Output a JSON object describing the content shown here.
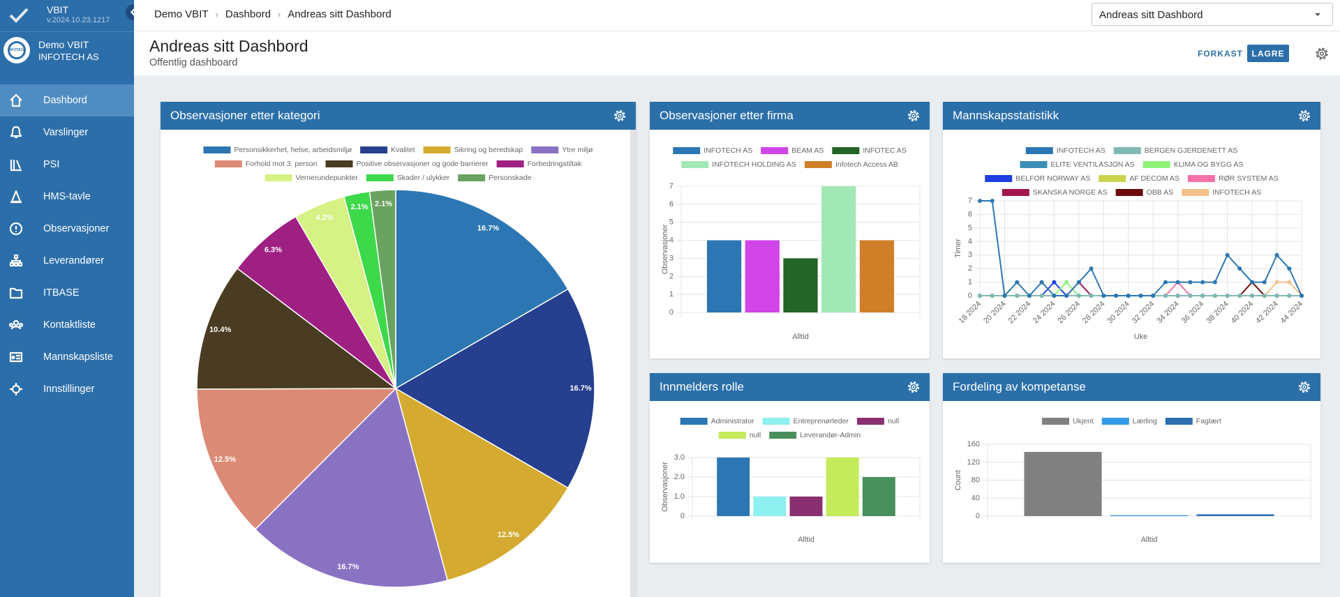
{
  "sidebar": {
    "app_name": "VBIT",
    "version": "v.2024.10.23.1217",
    "account": "Demo VBIT",
    "company": "INFOTECH AS",
    "logo_text": "INFOTECH",
    "menu": [
      "Dashbord",
      "Varslinger",
      "PSI",
      "HMS-tavle",
      "Observasjoner",
      "Leverandører",
      "ITBASE",
      "Kontaktliste",
      "Mannskapsliste",
      "Innstillinger"
    ]
  },
  "topbar": {
    "breadcrumb": [
      "Demo VBIT",
      "Dashbord",
      "Andreas sitt Dashbord"
    ],
    "dashboard_select": "Andreas sitt Dashbord"
  },
  "header": {
    "title": "Andreas sitt Dashbord",
    "subtitle": "Offentlig dashboard",
    "buttons": {
      "discard": "FORKAST",
      "save": "LAGRE"
    }
  },
  "chart_data": [
    {
      "type": "pie",
      "title": "Observasjoner etter kategori",
      "categories": [
        "Personsikkerhet, helse, arbeidsmiljø",
        "Kvalitet",
        "Sikring og beredskap",
        "Ytre miljø",
        "Forhold mot 3. person",
        "Positive observasjoner og gode barrierer",
        "Forbedringstiltak",
        "Vernerundepunkter",
        "Skader / ulykker",
        "Personskade"
      ],
      "values": [
        16.7,
        16.7,
        12.5,
        16.7,
        12.5,
        10.4,
        6.3,
        4.2,
        2.1,
        2.1
      ],
      "value_labels": [
        "16.7%",
        "16.7%",
        "12.5%",
        "16.7%",
        "12.5%",
        "10.4%",
        "6.3%",
        "4.2%",
        "2.1%",
        "2.1%"
      ],
      "colors": [
        "#2c77b3",
        "#263f8e",
        "#d4aa30",
        "#8a72c3",
        "#db8b75",
        "#4a3c22",
        "#9f2083",
        "#d6f184",
        "#3ed84b",
        "#6aa25f"
      ]
    },
    {
      "type": "bar",
      "title": "Observasjoner etter firma",
      "categories": [
        "Alltid"
      ],
      "series": [
        {
          "name": "INFOTECH AS",
          "color": "#2c77b3",
          "values": [
            4
          ]
        },
        {
          "name": "BEAM AS",
          "color": "#d144e8",
          "values": [
            4
          ]
        },
        {
          "name": "INFOTEC AS",
          "color": "#236427",
          "values": [
            3
          ]
        },
        {
          "name": "INFOTECH HOLDING AS",
          "color": "#a2e8b6",
          "values": [
            7
          ]
        },
        {
          "name": "Infotech Access AB",
          "color": "#d07f29",
          "values": [
            4
          ]
        }
      ],
      "ylabel": "Observasjoner",
      "ylim": [
        0,
        7
      ],
      "yticks": [
        0,
        1,
        2,
        3,
        4,
        5,
        6,
        7
      ],
      "grid": true
    },
    {
      "type": "line",
      "title": "Mannskapsstatistikk",
      "categories": [
        "18 2024",
        null,
        "20 2024",
        null,
        "22 2024",
        null,
        "24 2024",
        null,
        "26 2024",
        null,
        "28 2024",
        null,
        "30 2024",
        null,
        "32 2024",
        null,
        "34 2024",
        null,
        "36 2024",
        null,
        "38 2024",
        null,
        "40 2024",
        null,
        "42 2024",
        null,
        "44 2024"
      ],
      "series": [
        {
          "name": "INFOTECH AS",
          "color": "#2c77b3",
          "values": [
            7,
            7,
            0,
            1,
            0,
            1,
            0,
            0,
            1,
            2,
            0,
            0,
            0,
            0,
            0,
            1,
            1,
            1,
            1,
            1,
            3,
            2,
            1,
            1,
            3,
            2,
            0
          ]
        },
        {
          "name": "BERGEN GJERDENETT AS",
          "color": "#80b9b3",
          "values": [
            0,
            0,
            0,
            0,
            0,
            0,
            0,
            0,
            0,
            0,
            0,
            0,
            0,
            0,
            0,
            0,
            0,
            0,
            0,
            0,
            0,
            0,
            0,
            0,
            0,
            0,
            0
          ]
        },
        {
          "name": "ELITE VENTILASJON AS",
          "color": "#3b8fb7",
          "values": [
            0,
            0,
            0,
            0,
            0,
            0,
            0,
            0,
            0,
            0,
            0,
            0,
            0,
            0,
            0,
            0,
            0,
            0,
            0,
            0,
            0,
            0,
            0,
            0,
            0,
            0,
            0
          ]
        },
        {
          "name": "KLIMA OG BYGG AS",
          "color": "#8ff27b",
          "values": [
            0,
            0,
            0,
            0,
            0,
            0,
            0,
            1,
            0,
            0,
            0,
            0,
            0,
            0,
            0,
            0,
            0,
            0,
            0,
            0,
            0,
            0,
            0,
            0,
            0,
            0,
            0
          ]
        },
        {
          "name": "BELFOR NORWAY AS",
          "color": "#1f3fe0",
          "values": [
            0,
            0,
            0,
            0,
            0,
            0,
            1,
            0,
            0,
            0,
            0,
            0,
            0,
            0,
            0,
            0,
            0,
            0,
            0,
            0,
            0,
            0,
            0,
            0,
            0,
            0,
            0
          ]
        },
        {
          "name": "AF DECOM AS",
          "color": "#cad44c",
          "values": [
            0,
            0,
            0,
            0,
            0,
            0,
            0,
            0,
            0,
            0,
            0,
            0,
            0,
            0,
            0,
            0,
            0,
            0,
            0,
            0,
            0,
            0,
            0,
            0,
            0,
            0,
            0
          ]
        },
        {
          "name": "RØR SYSTEM AS",
          "color": "#f570a9",
          "values": [
            0,
            0,
            0,
            0,
            0,
            0,
            0,
            0,
            0,
            0,
            0,
            0,
            0,
            0,
            0,
            0,
            1,
            0,
            0,
            0,
            0,
            0,
            0,
            0,
            0,
            0,
            0
          ]
        },
        {
          "name": "SKANSKA NORGE AS",
          "color": "#a1164b",
          "values": [
            0,
            0,
            0,
            0,
            0,
            0,
            0,
            0,
            1,
            0,
            0,
            0,
            0,
            0,
            0,
            0,
            0,
            0,
            0,
            0,
            0,
            0,
            0,
            0,
            0,
            0,
            0
          ]
        },
        {
          "name": "OBB AS",
          "color": "#6b0b0b",
          "values": [
            0,
            0,
            0,
            0,
            0,
            0,
            0,
            0,
            0,
            0,
            0,
            0,
            0,
            0,
            0,
            0,
            0,
            0,
            0,
            0,
            0,
            0,
            1,
            0,
            0,
            0,
            0
          ]
        },
        {
          "name": "INFOTECH AS",
          "color": "#f0c18b",
          "values": [
            0,
            0,
            0,
            0,
            0,
            0,
            0,
            0,
            0,
            0,
            0,
            0,
            0,
            0,
            0,
            0,
            0,
            0,
            0,
            0,
            0,
            0,
            0,
            0,
            1,
            1,
            0
          ]
        }
      ],
      "xlabel": "Uke",
      "ylabel": "Timer",
      "ylim": [
        0,
        7
      ],
      "yticks": [
        0,
        1,
        2,
        3,
        4,
        5,
        6,
        7
      ],
      "grid": true
    },
    {
      "type": "bar",
      "title": "Innmelders rolle",
      "categories": [
        "Alltid"
      ],
      "series": [
        {
          "name": "Administrator",
          "color": "#2c77b3",
          "values": [
            3
          ]
        },
        {
          "name": "Entreprenørleder",
          "color": "#8ff0f0",
          "values": [
            1
          ]
        },
        {
          "name": "null",
          "color": "#8a3070",
          "values": [
            1
          ]
        },
        {
          "name": "null",
          "color": "#c3eb5b",
          "values": [
            3
          ]
        },
        {
          "name": "Leverandør-Admin",
          "color": "#4a905e",
          "values": [
            2
          ]
        }
      ],
      "ylabel": "Observasjoner",
      "ylim": [
        0,
        3
      ],
      "yticks": [
        0,
        {
          "value": 1,
          "label": "1.0"
        },
        {
          "value": 2,
          "label": "2.0"
        },
        {
          "value": 3,
          "label": "3.0"
        }
      ],
      "grid": true
    },
    {
      "type": "bar",
      "title": "Fordeling av kompetanse",
      "categories": [
        "Alltid"
      ],
      "series": [
        {
          "name": "Ukjent",
          "color": "#808080",
          "values": [
            143
          ]
        },
        {
          "name": "Lærling",
          "color": "#3399e6",
          "values": [
            2
          ]
        },
        {
          "name": "Faglært",
          "color": "#2b6fb0",
          "values": [
            4
          ]
        }
      ],
      "ylabel": "Count",
      "ylim": [
        0,
        160
      ],
      "yticks": [
        0,
        40,
        80,
        120,
        160
      ],
      "grid": true
    }
  ]
}
